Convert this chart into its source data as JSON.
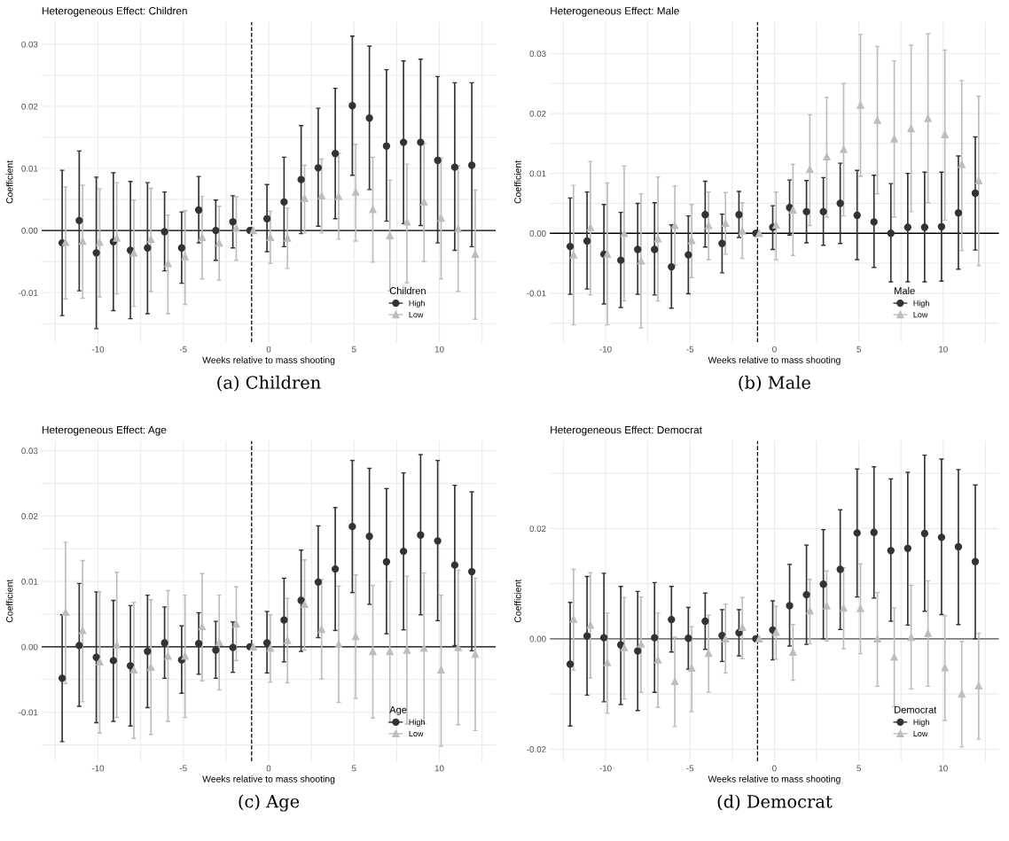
{
  "chart_data": [
    {
      "type": "scatter",
      "title": "Heterogeneous Effect: Children",
      "xlabel": "Weeks relative to mass shooting",
      "ylabel": "Coefficient",
      "legend_title": "Children",
      "annotations": [
        "(a) Children"
      ],
      "xlim": [
        -13.3,
        13.3
      ],
      "ylim": [
        -0.018,
        0.0336
      ],
      "xticks": [
        {
          "value": -12.5,
          "label": null
        },
        -10,
        {
          "value": -7.5,
          "label": null
        },
        -5,
        {
          "value": -2.5,
          "label": null
        },
        0,
        {
          "value": 2.5,
          "label": null
        },
        5,
        {
          "value": 7.5,
          "label": null
        },
        10,
        {
          "value": 12.5,
          "label": null
        }
      ],
      "yticks": [
        {
          "value": -0.015,
          "label": null
        },
        -0.01,
        {
          "value": -0.005,
          "label": null
        },
        {
          "value": 0,
          "label": "0.00"
        },
        {
          "value": 0.005,
          "label": null
        },
        0.01,
        {
          "value": 0.015,
          "label": null
        },
        0.02,
        {
          "value": 0.025,
          "label": null
        },
        0.03
      ],
      "grid": true,
      "legend": "bottom right",
      "ref_lines": [
        {
          "axis": "y",
          "value": 0,
          "color": "#000000",
          "line_style": "solid"
        },
        {
          "axis": "x",
          "value": -1,
          "color": "#000000",
          "line_style": "dashed"
        }
      ],
      "series": [
        {
          "name": "High",
          "color": "#333333",
          "marker": "circle",
          "x": [
            -12.1,
            -11.1,
            -10.1,
            -9.1,
            -8.1,
            -7.1,
            -6.1,
            -5.1,
            -4.1,
            -3.1,
            -2.1,
            -1.1,
            -0.1,
            0.9,
            1.9,
            2.9,
            3.9,
            4.9,
            5.9,
            6.9,
            7.9,
            8.9,
            9.9,
            10.9,
            11.9
          ],
          "values": [
            -0.002,
            0.0016,
            -0.0036,
            -0.0018,
            -0.0032,
            -0.0028,
            -0.0002,
            -0.0028,
            0.0033,
            0.0,
            0.0014,
            0,
            0.0019,
            0.0046,
            0.0082,
            0.0101,
            0.0124,
            0.0201,
            0.0181,
            0.0136,
            0.0142,
            0.0142,
            0.0113,
            0.0102,
            0.0105
          ],
          "errors": [
            [
              -0.0137,
              0.0097
            ],
            [
              -0.0097,
              0.0128
            ],
            [
              -0.0158,
              0.0086
            ],
            [
              -0.0129,
              0.0093
            ],
            [
              -0.0142,
              0.0079
            ],
            [
              -0.0134,
              0.0077
            ],
            [
              -0.0065,
              0.0062
            ],
            [
              -0.0085,
              0.003
            ],
            [
              -0.002,
              0.0087
            ],
            [
              -0.0048,
              0.0049
            ],
            [
              -0.0028,
              0.0056
            ],
            null,
            [
              -0.0034,
              0.0074
            ],
            [
              -0.0026,
              0.0118
            ],
            [
              -0.0005,
              0.0169
            ],
            [
              0.0007,
              0.0197
            ],
            [
              0.0019,
              0.0229
            ],
            [
              0.0089,
              0.0313
            ],
            [
              0.0066,
              0.0297
            ],
            [
              0.0015,
              0.0259
            ],
            [
              0.0011,
              0.0273
            ],
            [
              0.0008,
              0.0276
            ],
            [
              -0.002,
              0.0248
            ],
            [
              -0.0032,
              0.0238
            ],
            [
              -0.0026,
              0.0238
            ]
          ]
        },
        {
          "name": "Low",
          "color": "#bdbdbd",
          "marker": "triangle",
          "x": [
            -11.9,
            -10.9,
            -9.9,
            -8.9,
            -7.9,
            -6.9,
            -5.9,
            -4.9,
            -3.9,
            -2.9,
            -1.9,
            -0.9,
            0.1,
            1.1,
            2.1,
            3.1,
            4.1,
            5.1,
            6.1,
            7.1,
            8.1,
            9.1,
            10.1,
            11.1,
            12.1
          ],
          "values": [
            -0.0019,
            -0.0017,
            -0.0019,
            -0.0012,
            -0.0036,
            -0.0014,
            -0.0053,
            -0.0042,
            -0.0011,
            -0.002,
            0.0004,
            0,
            -0.0011,
            -0.0012,
            0.0052,
            0.0056,
            0.0055,
            0.0062,
            0.0034,
            -0.0008,
            0.0014,
            0.0046,
            0.002,
            0.0003,
            -0.0038
          ],
          "errors": [
            [
              -0.011,
              0.007
            ],
            [
              -0.0109,
              0.0073
            ],
            [
              -0.0107,
              0.0067
            ],
            [
              -0.0102,
              0.0077
            ],
            [
              -0.0122,
              0.0049
            ],
            [
              -0.0098,
              0.0068
            ],
            [
              -0.0134,
              0.0025
            ],
            [
              -0.0119,
              0.0032
            ],
            [
              -0.0078,
              0.0055
            ],
            [
              -0.008,
              0.0039
            ],
            [
              -0.0048,
              0.0054
            ],
            null,
            [
              -0.0053,
              0.0031
            ],
            [
              -0.0061,
              0.0036
            ],
            [
              -0.0004,
              0.0105
            ],
            [
              -0.0004,
              0.0115
            ],
            [
              -0.0014,
              0.0124
            ],
            [
              -0.0017,
              0.0139
            ],
            [
              -0.0051,
              0.0118
            ],
            [
              -0.0097,
              0.0081
            ],
            [
              -0.0084,
              0.0107
            ],
            [
              -0.005,
              0.014
            ],
            [
              -0.0078,
              0.0117
            ],
            [
              -0.0098,
              0.0104
            ],
            [
              -0.0143,
              0.0065
            ]
          ]
        }
      ]
    },
    {
      "type": "scatter",
      "title": "Heterogeneous Effect: Male",
      "xlabel": "Weeks relative to mass shooting",
      "ylabel": "Coefficient",
      "legend_title": "Male",
      "annotations": [
        "(b) Male"
      ],
      "xlim": [
        -13.3,
        13.3
      ],
      "ylim": [
        -0.0182,
        0.0353
      ],
      "xticks": [
        {
          "value": -12.5,
          "label": null
        },
        -10,
        {
          "value": -7.5,
          "label": null
        },
        -5,
        {
          "value": -2.5,
          "label": null
        },
        0,
        {
          "value": 2.5,
          "label": null
        },
        5,
        {
          "value": 7.5,
          "label": null
        },
        10,
        {
          "value": 12.5,
          "label": null
        }
      ],
      "yticks": [
        {
          "value": -0.015,
          "label": null
        },
        -0.01,
        {
          "value": -0.005,
          "label": null
        },
        {
          "value": 0,
          "label": "0.00"
        },
        {
          "value": 0.005,
          "label": null
        },
        0.01,
        {
          "value": 0.015,
          "label": null
        },
        0.02,
        {
          "value": 0.025,
          "label": null
        },
        0.03
      ],
      "grid": true,
      "legend": "bottom right",
      "ref_lines": [
        {
          "axis": "y",
          "value": 0,
          "color": "#000000",
          "line_style": "solid"
        },
        {
          "axis": "x",
          "value": -1,
          "color": "#000000",
          "line_style": "dashed"
        }
      ],
      "series": [
        {
          "name": "High",
          "color": "#333333",
          "marker": "circle",
          "x": [
            -12.1,
            -11.1,
            -10.1,
            -9.1,
            -8.1,
            -7.1,
            -6.1,
            -5.1,
            -4.1,
            -3.1,
            -2.1,
            -1.1,
            -0.1,
            0.9,
            1.9,
            2.9,
            3.9,
            4.9,
            5.9,
            6.9,
            7.9,
            8.9,
            9.9,
            10.9,
            11.9
          ],
          "values": [
            -0.0022,
            -0.0013,
            -0.0035,
            -0.0045,
            -0.0027,
            -0.0027,
            -0.0056,
            -0.0036,
            0.0031,
            -0.0017,
            0.0031,
            0,
            0.001,
            0.0043,
            0.0036,
            0.0036,
            0.005,
            0.003,
            0.0019,
            0.0,
            0.001,
            0.001,
            0.0011,
            0.0034,
            0.0067
          ],
          "errors": [
            [
              -0.0102,
              0.0059
            ],
            [
              -0.0093,
              0.0069
            ],
            [
              -0.0118,
              0.0048
            ],
            [
              -0.0124,
              0.0035
            ],
            [
              -0.0102,
              0.005
            ],
            [
              -0.0103,
              0.0051
            ],
            [
              -0.0125,
              0.0014
            ],
            [
              -0.0101,
              0.0029
            ],
            [
              -0.0023,
              0.0087
            ],
            [
              -0.0066,
              0.0032
            ],
            [
              -0.0007,
              0.007
            ],
            null,
            [
              -0.0027,
              0.0046
            ],
            [
              -0.0003,
              0.0089
            ],
            [
              -0.0016,
              0.0088
            ],
            [
              -0.002,
              0.0093
            ],
            [
              -0.0017,
              0.0117
            ],
            [
              -0.0044,
              0.0105
            ],
            [
              -0.0057,
              0.0097
            ],
            [
              -0.0081,
              0.0083
            ],
            [
              -0.0081,
              0.01
            ],
            [
              -0.0081,
              0.0102
            ],
            [
              -0.008,
              0.0102
            ],
            [
              -0.006,
              0.0129
            ],
            [
              -0.0028,
              0.0161
            ]
          ]
        },
        {
          "name": "Low",
          "color": "#bdbdbd",
          "marker": "triangle",
          "x": [
            -11.9,
            -10.9,
            -9.9,
            -8.9,
            -7.9,
            -6.9,
            -5.9,
            -4.9,
            -3.9,
            -2.9,
            -1.9,
            -0.9,
            0.1,
            1.1,
            2.1,
            3.1,
            4.1,
            5.1,
            6.1,
            7.1,
            8.1,
            9.1,
            10.1,
            11.1,
            12.1
          ],
          "values": [
            -0.0036,
            0.001,
            -0.0035,
            0.0,
            -0.0046,
            -0.0009,
            0.0013,
            -0.0012,
            0.0013,
            0.0017,
            0.0004,
            0,
            0.0014,
            0.0039,
            0.0107,
            0.0128,
            0.014,
            0.0214,
            0.0189,
            0.0158,
            0.0175,
            0.0192,
            0.0165,
            0.0115,
            0.0088
          ],
          "errors": [
            [
              -0.0153,
              0.008
            ],
            [
              -0.0103,
              0.012
            ],
            [
              -0.0153,
              0.0084
            ],
            [
              -0.0113,
              0.0112
            ],
            [
              -0.0158,
              0.0066
            ],
            [
              -0.0113,
              0.0094
            ],
            [
              -0.0053,
              0.0079
            ],
            [
              -0.0074,
              0.0048
            ],
            [
              -0.0044,
              0.0069
            ],
            [
              -0.0035,
              0.0068
            ],
            [
              -0.0042,
              0.0051
            ],
            null,
            [
              -0.0044,
              0.0069
            ],
            [
              -0.0037,
              0.0115
            ],
            [
              0.0013,
              0.0198
            ],
            [
              0.0027,
              0.0227
            ],
            [
              0.0029,
              0.025
            ],
            [
              0.0095,
              0.0332
            ],
            [
              0.0066,
              0.0312
            ],
            [
              0.0027,
              0.0288
            ],
            [
              0.0036,
              0.0314
            ],
            [
              0.0051,
              0.0333
            ],
            [
              0.0022,
              0.0306
            ],
            [
              -0.0029,
              0.0255
            ],
            [
              -0.0054,
              0.0229
            ]
          ]
        }
      ]
    },
    {
      "type": "scatter",
      "title": "Heterogeneous Effect: Age",
      "xlabel": "Weeks relative to mass shooting",
      "ylabel": "Coefficient",
      "legend_title": "Age",
      "annotations": [
        "(c) Age"
      ],
      "xlim": [
        -13.3,
        13.3
      ],
      "ylim": [
        -0.0175,
        0.0315
      ],
      "xticks": [
        {
          "value": -12.5,
          "label": null
        },
        -10,
        {
          "value": -7.5,
          "label": null
        },
        -5,
        {
          "value": -2.5,
          "label": null
        },
        0,
        {
          "value": 2.5,
          "label": null
        },
        5,
        {
          "value": 7.5,
          "label": null
        },
        10,
        {
          "value": 12.5,
          "label": null
        }
      ],
      "yticks": [
        {
          "value": -0.015,
          "label": null
        },
        -0.01,
        {
          "value": -0.005,
          "label": null
        },
        {
          "value": 0,
          "label": "0.00"
        },
        {
          "value": 0.005,
          "label": null
        },
        0.01,
        {
          "value": 0.015,
          "label": null
        },
        0.02,
        {
          "value": 0.025,
          "label": null
        },
        0.03
      ],
      "grid": true,
      "legend": "bottom right",
      "ref_lines": [
        {
          "axis": "y",
          "value": 0,
          "color": "#000000",
          "line_style": "solid"
        },
        {
          "axis": "x",
          "value": -1,
          "color": "#000000",
          "line_style": "dashed"
        }
      ],
      "series": [
        {
          "name": "High",
          "color": "#333333",
          "marker": "circle",
          "x": [
            -12.1,
            -11.1,
            -10.1,
            -9.1,
            -8.1,
            -7.1,
            -6.1,
            -5.1,
            -4.1,
            -3.1,
            -2.1,
            -1.1,
            -0.1,
            0.9,
            1.9,
            2.9,
            3.9,
            4.9,
            5.9,
            6.9,
            7.9,
            8.9,
            9.9,
            10.9,
            11.9
          ],
          "values": [
            -0.0048,
            0.0002,
            -0.0016,
            -0.0021,
            -0.0029,
            -0.0007,
            0.0006,
            -0.002,
            0.0005,
            -0.0005,
            -0.0001,
            0,
            0.0006,
            0.0041,
            0.0071,
            0.0099,
            0.0119,
            0.0184,
            0.0169,
            0.013,
            0.0146,
            0.0171,
            0.0162,
            0.0125,
            0.0115
          ],
          "errors": [
            [
              -0.0145,
              0.0049
            ],
            [
              -0.0091,
              0.0097
            ],
            [
              -0.0116,
              0.0084
            ],
            [
              -0.0114,
              0.0071
            ],
            [
              -0.0121,
              0.0063
            ],
            [
              -0.0093,
              0.0079
            ],
            [
              -0.0048,
              0.0061
            ],
            [
              -0.0071,
              0.0032
            ],
            [
              -0.0042,
              0.0052
            ],
            [
              -0.0048,
              0.0039
            ],
            [
              -0.0039,
              0.0038
            ],
            null,
            [
              -0.004,
              0.0054
            ],
            [
              -0.0023,
              0.0105
            ],
            [
              -0.0007,
              0.0148
            ],
            [
              0.0014,
              0.0185
            ],
            [
              0.0025,
              0.0213
            ],
            [
              0.0083,
              0.0285
            ],
            [
              0.0065,
              0.0273
            ],
            [
              0.002,
              0.0242
            ],
            [
              0.0026,
              0.0266
            ],
            [
              0.0049,
              0.0294
            ],
            [
              0.004,
              0.0285
            ],
            [
              0.0002,
              0.0247
            ],
            [
              -0.0006,
              0.0237
            ]
          ]
        },
        {
          "name": "Low",
          "color": "#bdbdbd",
          "marker": "triangle",
          "x": [
            -11.9,
            -10.9,
            -9.9,
            -8.9,
            -7.9,
            -6.9,
            -5.9,
            -4.9,
            -3.9,
            -2.9,
            -1.9,
            -0.9,
            0.1,
            1.1,
            2.1,
            3.1,
            4.1,
            5.1,
            6.1,
            7.1,
            8.1,
            9.1,
            10.1,
            11.1,
            12.1
          ],
          "values": [
            0.0053,
            0.0025,
            -0.0023,
            0.0003,
            -0.0035,
            -0.0031,
            -0.0014,
            -0.0014,
            0.0031,
            0.0007,
            0.0035,
            0,
            -0.0002,
            0.001,
            0.0065,
            0.0027,
            0.0004,
            0.0016,
            -0.0007,
            -0.0007,
            -0.0005,
            -0.0002,
            -0.0035,
            -0.0001,
            -0.0011
          ],
          "errors": [
            [
              -0.0056,
              0.016
            ],
            [
              -0.0084,
              0.0132
            ],
            [
              -0.0132,
              0.0084
            ],
            [
              -0.0108,
              0.0114
            ],
            [
              -0.014,
              0.0068
            ],
            [
              -0.0134,
              0.0072
            ],
            [
              -0.0114,
              0.0086
            ],
            [
              -0.0108,
              0.0079
            ],
            [
              -0.0052,
              0.0112
            ],
            [
              -0.0066,
              0.0079
            ],
            [
              -0.0021,
              0.0092
            ],
            null,
            [
              -0.0054,
              0.0049
            ],
            [
              -0.0055,
              0.0074
            ],
            [
              -0.0005,
              0.0133
            ],
            [
              -0.0049,
              0.0103
            ],
            [
              -0.0085,
              0.0093
            ],
            [
              -0.0079,
              0.011
            ],
            [
              -0.0109,
              0.0094
            ],
            [
              -0.0116,
              0.01
            ],
            [
              -0.0118,
              0.0108
            ],
            [
              -0.0117,
              0.0113
            ],
            [
              -0.0152,
              0.0079
            ],
            [
              -0.0119,
              0.0117
            ],
            [
              -0.0128,
              0.0105
            ]
          ]
        }
      ]
    },
    {
      "type": "scatter",
      "title": "Heterogeneous Effect: Democrat",
      "xlabel": "Weeks relative to mass shooting",
      "ylabel": "Coefficient",
      "legend_title": "Democrat",
      "annotations": [
        "(d) Democrat"
      ],
      "xlim": [
        -13.3,
        13.3
      ],
      "ylim": [
        -0.0222,
        0.0359
      ],
      "xticks": [
        {
          "value": -12.5,
          "label": null
        },
        -10,
        {
          "value": -7.5,
          "label": null
        },
        -5,
        {
          "value": -2.5,
          "label": null
        },
        0,
        {
          "value": 2.5,
          "label": null
        },
        5,
        {
          "value": 7.5,
          "label": null
        },
        10,
        {
          "value": 12.5,
          "label": null
        }
      ],
      "yticks": [
        -0.02,
        {
          "value": -0.01,
          "label": null
        },
        {
          "value": 0,
          "label": "0.00"
        },
        {
          "value": 0.01,
          "label": null
        },
        0.02,
        {
          "value": 0.03,
          "label": null
        }
      ],
      "grid": true,
      "legend": "bottom right",
      "ref_lines": [
        {
          "axis": "y",
          "value": 0,
          "color": "#555555",
          "line_style": "solid"
        },
        {
          "axis": "x",
          "value": -1,
          "color": "#000000",
          "line_style": "dashed"
        }
      ],
      "series": [
        {
          "name": "High",
          "color": "#333333",
          "marker": "circle",
          "x": [
            -12.1,
            -11.1,
            -10.1,
            -9.1,
            -8.1,
            -7.1,
            -6.1,
            -5.1,
            -4.1,
            -3.1,
            -2.1,
            -1.1,
            -0.1,
            0.9,
            1.9,
            2.9,
            3.9,
            4.9,
            5.9,
            6.9,
            7.9,
            8.9,
            9.9,
            10.9,
            11.9
          ],
          "values": [
            -0.0046,
            0.0005,
            0.0002,
            -0.0011,
            -0.0022,
            0.0002,
            0.0035,
            0.0001,
            0.0032,
            0.0006,
            0.0011,
            0,
            0.0016,
            0.006,
            0.008,
            0.0099,
            0.0126,
            0.0192,
            0.0193,
            0.016,
            0.0164,
            0.0191,
            0.0184,
            0.0167,
            0.014
          ],
          "errors": [
            [
              -0.0158,
              0.0066
            ],
            [
              -0.0102,
              0.0113
            ],
            [
              -0.0114,
              0.0119
            ],
            [
              -0.0119,
              0.0095
            ],
            [
              -0.013,
              0.0086
            ],
            [
              -0.0097,
              0.0102
            ],
            [
              -0.0024,
              0.0095
            ],
            [
              -0.0055,
              0.0057
            ],
            [
              -0.0019,
              0.0083
            ],
            [
              -0.0041,
              0.0053
            ],
            [
              -0.0031,
              0.0053
            ],
            null,
            [
              -0.0038,
              0.0069
            ],
            [
              -0.0013,
              0.0135
            ],
            [
              -0.001,
              0.017
            ],
            [
              0.0,
              0.0198
            ],
            [
              0.0017,
              0.0234
            ],
            [
              0.0076,
              0.0308
            ],
            [
              0.0074,
              0.0312
            ],
            [
              0.0032,
              0.029
            ],
            [
              0.0025,
              0.0302
            ],
            [
              0.005,
              0.0333
            ],
            [
              0.0044,
              0.0326
            ],
            [
              0.0026,
              0.0307
            ],
            [
              0.0,
              0.0279
            ]
          ]
        },
        {
          "name": "Low",
          "color": "#bdbdbd",
          "marker": "triangle",
          "x": [
            -11.9,
            -10.9,
            -9.9,
            -8.9,
            -7.9,
            -6.9,
            -5.9,
            -4.9,
            -3.9,
            -2.9,
            -1.9,
            -0.9,
            0.1,
            1.1,
            2.1,
            3.1,
            4.1,
            5.1,
            6.1,
            7.1,
            8.1,
            9.1,
            10.1,
            11.1,
            12.1
          ],
          "values": [
            0.0036,
            0.0025,
            -0.0043,
            -0.0016,
            -0.0009,
            -0.0038,
            -0.0077,
            -0.0053,
            -0.0026,
            0.0,
            0.0021,
            0,
            0.0012,
            -0.0024,
            0.0051,
            0.006,
            0.0056,
            0.0055,
            0.0,
            -0.0033,
            0.0003,
            0.001,
            -0.0052,
            -0.01,
            -0.0085
          ],
          "errors": [
            [
              -0.0057,
              0.0126
            ],
            [
              -0.0071,
              0.012
            ],
            [
              -0.0135,
              0.0047
            ],
            [
              -0.0109,
              0.0075
            ],
            [
              -0.0097,
              0.0076
            ],
            [
              -0.0124,
              0.0047
            ],
            [
              -0.0159,
              0.0003
            ],
            [
              -0.0132,
              0.0022
            ],
            [
              -0.0097,
              0.0043
            ],
            [
              -0.0062,
              0.0063
            ],
            [
              -0.0036,
              0.0075
            ],
            null,
            [
              -0.0037,
              0.0059
            ],
            [
              -0.0075,
              0.0026
            ],
            [
              -0.0009,
              0.0108
            ],
            [
              -0.0004,
              0.0123
            ],
            [
              -0.0018,
              0.0129
            ],
            [
              -0.0027,
              0.0136
            ],
            [
              -0.0086,
              0.0084
            ],
            [
              -0.0123,
              0.0056
            ],
            [
              -0.0091,
              0.0097
            ],
            [
              -0.0086,
              0.0105
            ],
            [
              -0.0148,
              0.0042
            ],
            [
              -0.0196,
              -0.0005
            ],
            [
              -0.0182,
              0.001
            ]
          ]
        }
      ]
    }
  ]
}
